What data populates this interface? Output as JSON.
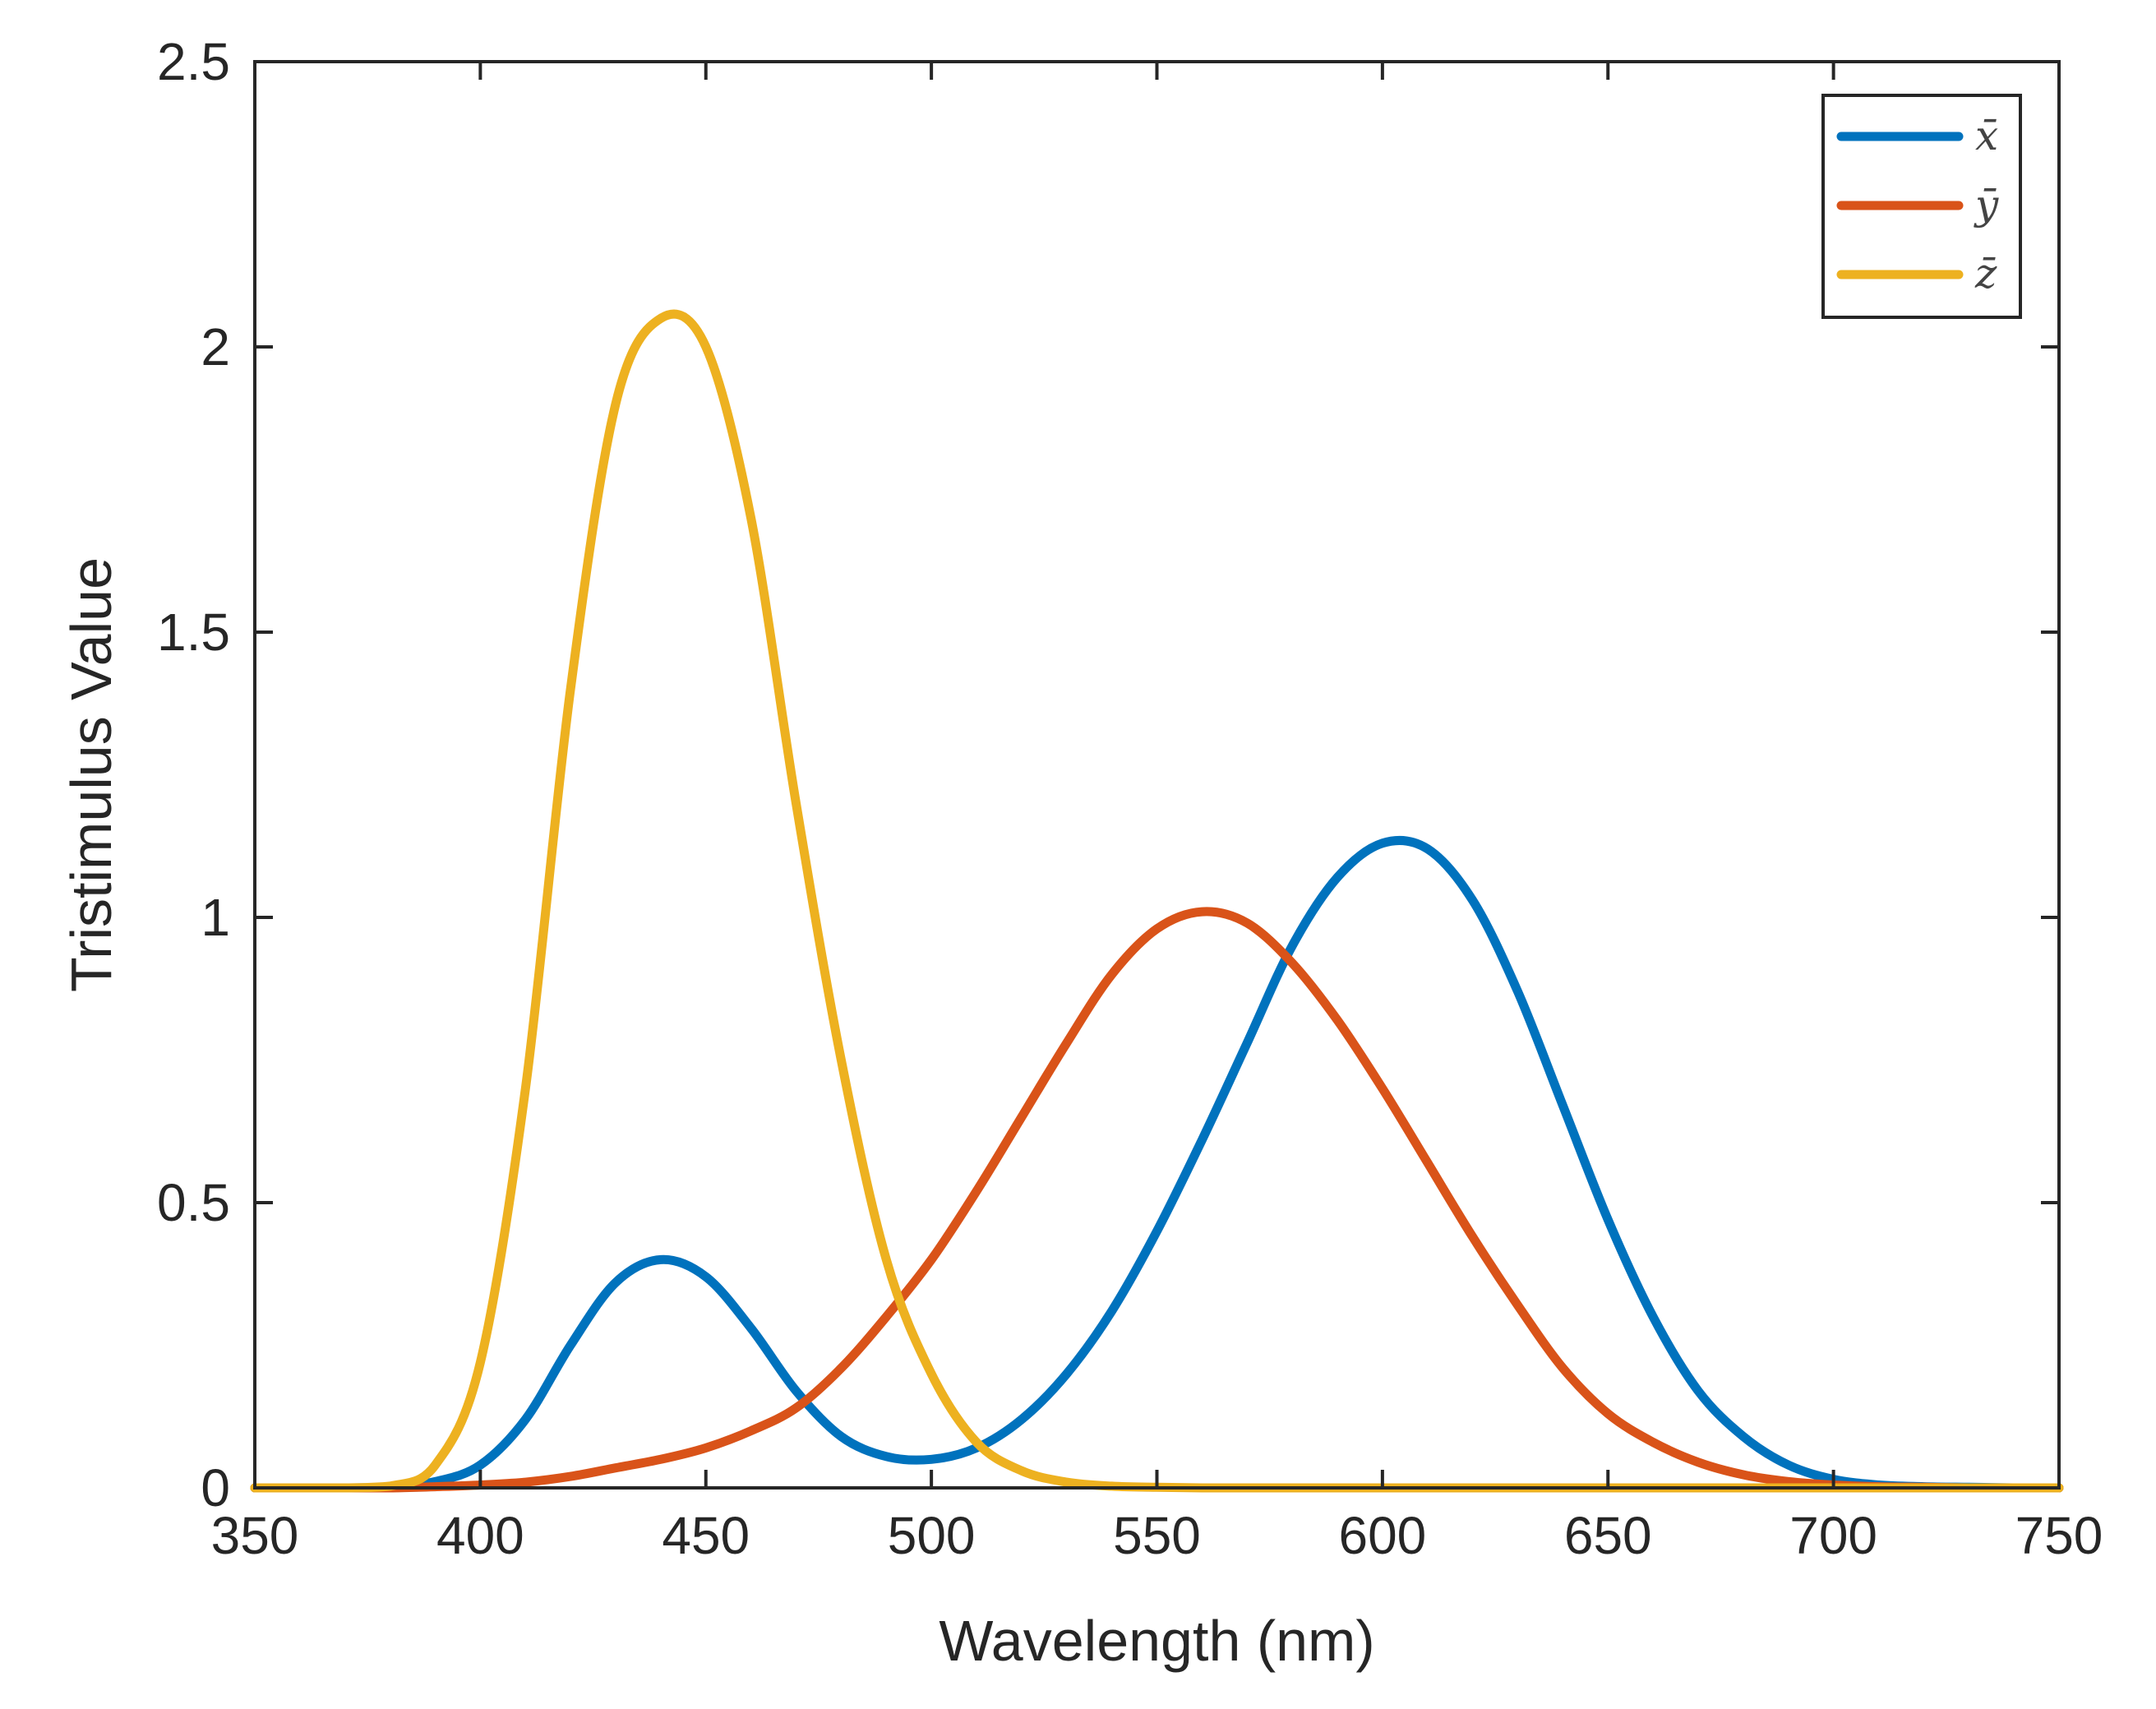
{
  "chart_data": {
    "type": "line",
    "title": "",
    "xlabel": "Wavelength (nm)",
    "ylabel": "Tristimulus Value",
    "xlim": [
      350,
      750
    ],
    "ylim": [
      0,
      2.5
    ],
    "xticks": [
      350,
      400,
      450,
      500,
      550,
      600,
      650,
      700,
      750
    ],
    "xtick_labels": [
      "350",
      "400",
      "450",
      "500",
      "550",
      "600",
      "650",
      "700",
      "750"
    ],
    "yticks": [
      0,
      0.5,
      1,
      1.5,
      2,
      2.5
    ],
    "ytick_labels": [
      "0",
      "0.5",
      "1",
      "1.5",
      "2",
      "2.5"
    ],
    "grid": false,
    "legend_position": "top-right",
    "x": [
      350,
      360,
      370,
      380,
      390,
      400,
      410,
      420,
      430,
      440,
      450,
      460,
      470,
      480,
      490,
      500,
      510,
      520,
      530,
      540,
      550,
      560,
      570,
      580,
      590,
      600,
      610,
      620,
      630,
      640,
      650,
      660,
      670,
      680,
      690,
      700,
      710,
      720,
      730,
      740,
      750
    ],
    "series": [
      {
        "name": "x̄",
        "color": "#0072BD",
        "values": [
          0,
          0,
          0,
          0.001,
          0.011,
          0.04,
          0.12,
          0.25,
          0.36,
          0.4,
          0.37,
          0.28,
          0.17,
          0.09,
          0.055,
          0.05,
          0.07,
          0.12,
          0.2,
          0.31,
          0.45,
          0.61,
          0.78,
          0.95,
          1.07,
          1.13,
          1.12,
          1.03,
          0.87,
          0.67,
          0.47,
          0.3,
          0.17,
          0.09,
          0.04,
          0.015,
          0.005,
          0.002,
          0.001,
          0,
          0
        ]
      },
      {
        "name": "ȳ",
        "color": "#D95319",
        "values": [
          0,
          0,
          0,
          0,
          0.002,
          0.005,
          0.01,
          0.02,
          0.035,
          0.05,
          0.07,
          0.1,
          0.14,
          0.21,
          0.3,
          0.4,
          0.52,
          0.65,
          0.78,
          0.9,
          0.98,
          1.01,
          0.99,
          0.92,
          0.82,
          0.7,
          0.57,
          0.44,
          0.32,
          0.21,
          0.13,
          0.08,
          0.045,
          0.023,
          0.011,
          0.005,
          0.002,
          0.001,
          0,
          0,
          0
        ]
      },
      {
        "name": "z̄",
        "color": "#EDB120",
        "values": [
          0,
          0,
          0,
          0.003,
          0.04,
          0.22,
          0.7,
          1.4,
          1.9,
          2.05,
          2.0,
          1.7,
          1.2,
          0.75,
          0.4,
          0.2,
          0.08,
          0.03,
          0.01,
          0.003,
          0.001,
          0,
          0,
          0,
          0,
          0,
          0,
          0,
          0,
          0,
          0,
          0,
          0,
          0,
          0,
          0,
          0,
          0,
          0,
          0,
          0
        ]
      }
    ]
  }
}
